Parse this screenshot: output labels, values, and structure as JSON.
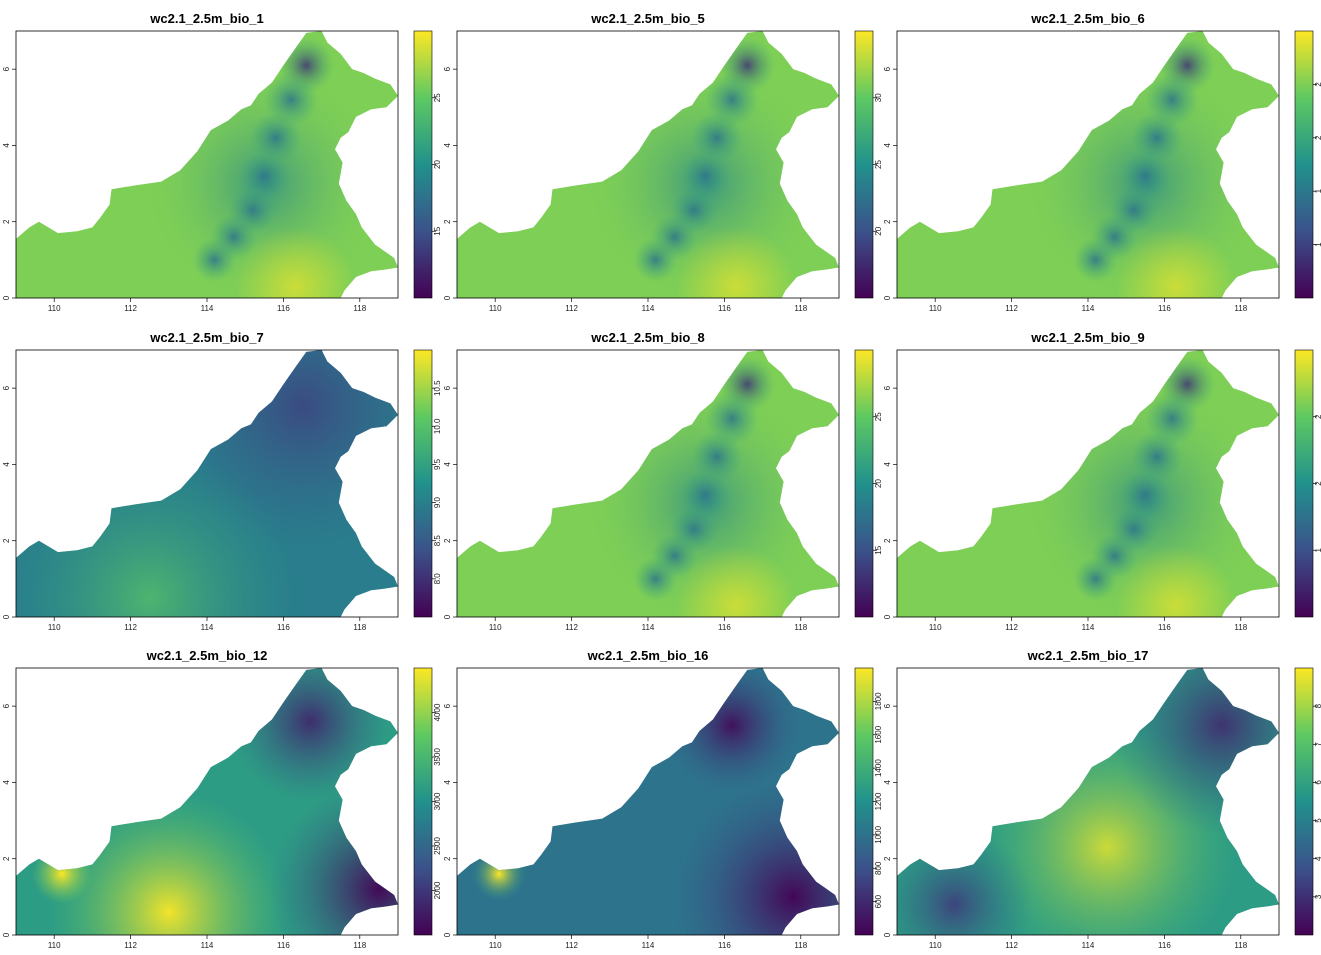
{
  "figure": {
    "x_ticks": [
      "110",
      "112",
      "114",
      "116",
      "118"
    ],
    "y_ticks": [
      "0",
      "2",
      "4",
      "6"
    ],
    "colormap": [
      "#440154",
      "#3b528b",
      "#21918c",
      "#5ec962",
      "#fde725"
    ],
    "panels": [
      {
        "title": "wc2.1_2.5m_bio_1",
        "scheme": "temp",
        "colorbar_ticks": [
          "15",
          "20",
          "25"
        ]
      },
      {
        "title": "wc2.1_2.5m_bio_5",
        "scheme": "temp",
        "colorbar_ticks": [
          "20",
          "25",
          "30"
        ]
      },
      {
        "title": "wc2.1_2.5m_bio_6",
        "scheme": "temp",
        "colorbar_ticks": [
          "1",
          "1",
          "2",
          "2"
        ]
      },
      {
        "title": "wc2.1_2.5m_bio_7",
        "scheme": "range",
        "colorbar_ticks": [
          "8.0",
          "8.5",
          "9.0",
          "9.5",
          "10.0",
          "10.5"
        ]
      },
      {
        "title": "wc2.1_2.5m_bio_8",
        "scheme": "temp",
        "colorbar_ticks": [
          "15",
          "20",
          "25"
        ]
      },
      {
        "title": "wc2.1_2.5m_bio_9",
        "scheme": "temp",
        "colorbar_ticks": [
          "1",
          "2",
          "2"
        ]
      },
      {
        "title": "wc2.1_2.5m_bio_12",
        "scheme": "precip",
        "colorbar_ticks": [
          "2000",
          "2500",
          "3000",
          "3500",
          "4000"
        ]
      },
      {
        "title": "wc2.1_2.5m_bio_16",
        "scheme": "wet",
        "colorbar_ticks": [
          "600",
          "800",
          "1000",
          "1200",
          "1400",
          "1600",
          "1800"
        ]
      },
      {
        "title": "wc2.1_2.5m_bio_17",
        "scheme": "dry",
        "colorbar_ticks": [
          "3",
          "4",
          "5",
          "6",
          "7",
          "8"
        ]
      }
    ]
  }
}
